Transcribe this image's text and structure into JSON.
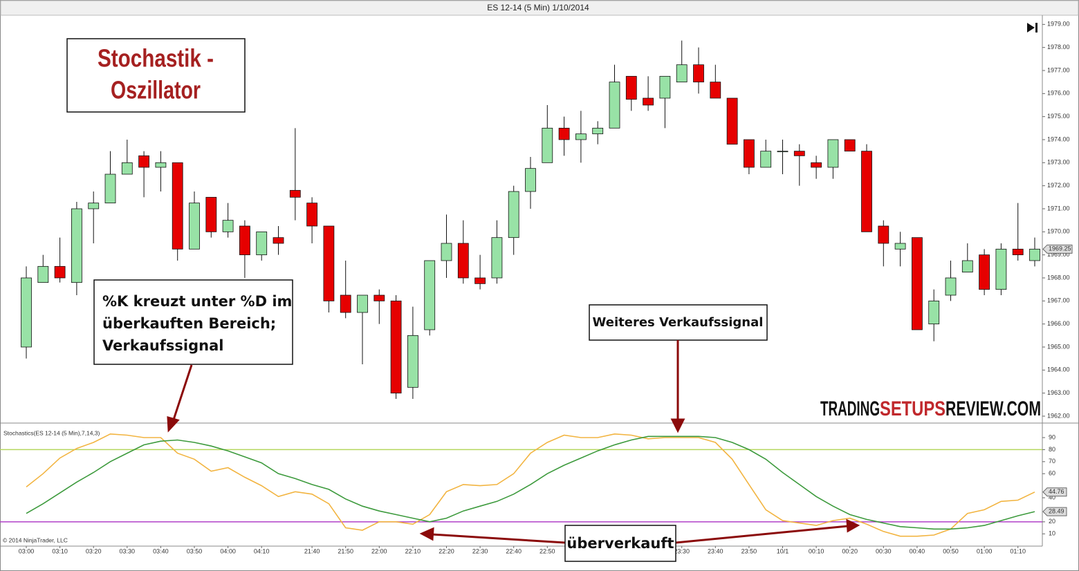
{
  "title": "ES 12-14 (5 Min)  1/10/2014",
  "chart_data": [
    {
      "type": "candlestick",
      "categories": [
        "03:00",
        null,
        "03:10",
        null,
        "03:20",
        null,
        "03:30",
        null,
        "03:40",
        null,
        "03:50",
        null,
        "04:00",
        null,
        "04:10",
        null,
        null,
        "21:40",
        null,
        "21:50",
        null,
        "22:00",
        null,
        "22:10",
        null,
        "22:20",
        null,
        "22:30",
        null,
        "22:40",
        null,
        "22:50",
        null,
        null,
        null,
        null,
        null,
        null,
        null,
        "23:30",
        null,
        "23:40",
        null,
        "23:50",
        null,
        "10/1",
        null,
        "00:10",
        null,
        "00:20",
        null,
        "00:30",
        null,
        "00:40",
        null,
        "00:50",
        null,
        "01:00",
        null,
        "01:10",
        null
      ],
      "open": [
        1965.0,
        1967.8,
        1968.5,
        1967.8,
        1971.0,
        1971.25,
        1972.5,
        1973.3,
        1972.8,
        1973.0,
        1969.25,
        1971.5,
        1970.0,
        1970.25,
        1969.0,
        1969.75,
        1971.8,
        1971.25,
        1970.25,
        1967.25,
        1966.5,
        1967.25,
        1967.0,
        1963.25,
        1965.75,
        1968.75,
        1969.5,
        1968.0,
        1968.0,
        1969.75,
        1971.75,
        1973.0,
        1974.5,
        1974.0,
        1974.25,
        1974.5,
        1976.75,
        1975.8,
        1975.8,
        1976.5,
        1977.25,
        1976.5,
        1975.8,
        1974.0,
        1972.8,
        1973.5,
        1973.5,
        1973.0,
        1972.8,
        1974.0,
        1973.5,
        1970.25,
        1969.25,
        1969.75,
        1966.0,
        1967.25,
        1968.25,
        1969.0,
        1967.5,
        1969.25,
        1968.75
      ],
      "high": [
        1968.5,
        1969.0,
        1969.75,
        1971.3,
        1971.75,
        1973.5,
        1974.0,
        1973.5,
        1973.5,
        1973.0,
        1971.75,
        1971.5,
        1971.25,
        1970.5,
        1970.0,
        1970.25,
        1974.5,
        1971.5,
        1970.25,
        1968.75,
        1967.25,
        1967.5,
        1967.25,
        1966.75,
        1968.75,
        1970.75,
        1970.5,
        1969.0,
        1970.5,
        1972.0,
        1973.25,
        1975.5,
        1975.0,
        1975.25,
        1974.8,
        1977.25,
        1976.75,
        1976.75,
        1976.75,
        1978.3,
        1978.0,
        1977.25,
        1975.8,
        1974.0,
        1974.0,
        1974.0,
        1973.8,
        1973.3,
        1974.0,
        1974.0,
        1973.8,
        1970.5,
        1970.0,
        1969.75,
        1967.5,
        1968.75,
        1969.5,
        1969.25,
        1969.5,
        1971.25,
        1969.75
      ],
      "low": [
        1964.5,
        1967.8,
        1967.8,
        1967.25,
        1969.5,
        1971.25,
        1972.5,
        1971.5,
        1971.75,
        1968.75,
        1969.25,
        1969.75,
        1969.75,
        1968.0,
        1968.75,
        1969.0,
        1970.5,
        1969.5,
        1966.5,
        1966.25,
        1964.25,
        1966.0,
        1962.75,
        1962.75,
        1965.5,
        1968.0,
        1967.75,
        1967.5,
        1967.75,
        1969.0,
        1971.0,
        1973.0,
        1973.3,
        1973.0,
        1973.8,
        1974.5,
        1975.25,
        1975.25,
        1974.5,
        1976.5,
        1976.0,
        1975.8,
        1973.8,
        1972.5,
        1972.8,
        1972.5,
        1972.0,
        1972.3,
        1972.3,
        1973.5,
        1970.0,
        1968.5,
        1968.5,
        1965.75,
        1965.25,
        1967.0,
        1968.25,
        1967.25,
        1967.25,
        1968.75,
        1968.5
      ],
      "close": [
        1968.0,
        1968.5,
        1968.0,
        1971.0,
        1971.25,
        1972.5,
        1973.0,
        1972.8,
        1973.0,
        1969.25,
        1971.25,
        1970.0,
        1970.5,
        1969.0,
        1970.0,
        1969.5,
        1971.5,
        1970.25,
        1967.0,
        1966.5,
        1967.25,
        1967.0,
        1963.0,
        1965.5,
        1968.75,
        1969.5,
        1968.0,
        1967.75,
        1969.75,
        1971.75,
        1972.75,
        1974.5,
        1974.0,
        1974.25,
        1974.5,
        1976.5,
        1975.75,
        1975.5,
        1976.75,
        1977.25,
        1976.5,
        1975.8,
        1973.8,
        1972.8,
        1973.5,
        1973.5,
        1973.3,
        1972.8,
        1974.0,
        1973.5,
        1970.0,
        1969.5,
        1969.5,
        1965.75,
        1967.0,
        1968.0,
        1968.75,
        1967.5,
        1969.25,
        1969.0,
        1969.25
      ],
      "up_color": "#98e2a6",
      "down_color": "#e60000",
      "ylim": [
        1961.7,
        1979.4
      ],
      "yticks": [
        {
          "value": 1962,
          "label": "1962.00"
        },
        {
          "value": 1963,
          "label": "1963.00"
        },
        {
          "value": 1964,
          "label": "1964.00"
        },
        {
          "value": 1965,
          "label": "1965.00"
        },
        {
          "value": 1966,
          "label": "1966.00"
        },
        {
          "value": 1967,
          "label": "1967.00"
        },
        {
          "value": 1968,
          "label": "1968.00"
        },
        {
          "value": 1969,
          "label": "1969.00"
        },
        {
          "value": 1970,
          "label": "1970.00"
        },
        {
          "value": 1971,
          "label": "1971.00"
        },
        {
          "value": 1972,
          "label": "1972.00"
        },
        {
          "value": 1973,
          "label": "1973.00"
        },
        {
          "value": 1974,
          "label": "1974.00"
        },
        {
          "value": 1975,
          "label": "1975.00"
        },
        {
          "value": 1976,
          "label": "1976.00"
        },
        {
          "value": 1977,
          "label": "1977.00"
        },
        {
          "value": 1978,
          "label": "1978.00"
        },
        {
          "value": 1979,
          "label": "1979.00"
        }
      ],
      "watermark": [
        "TRADING",
        "SETUPS",
        "REVIEW.COM"
      ]
    },
    {
      "type": "line",
      "title": "Stochastics(ES 12-14 (5 Min),7,14,3)",
      "series": [
        {
          "color": "#f2b440",
          "values": [
            49,
            60,
            73,
            81,
            86,
            93,
            92,
            90,
            90,
            77,
            72,
            62,
            65,
            57,
            50,
            41,
            45,
            43,
            35,
            15,
            13,
            20,
            20,
            18,
            26,
            45,
            51,
            50,
            51,
            60,
            77,
            86,
            92,
            90,
            90,
            93,
            92,
            89,
            90,
            90,
            90,
            86,
            72,
            51,
            30,
            21,
            19,
            17,
            21,
            23,
            18,
            12,
            8,
            8,
            9,
            14,
            27,
            30,
            37,
            38,
            44.76
          ]
        },
        {
          "color": "#3c9a3c",
          "values": [
            27,
            35,
            44,
            53,
            61,
            70,
            77,
            84,
            87,
            88,
            86,
            83,
            79,
            74,
            69,
            60,
            56,
            51,
            47,
            39,
            33,
            29,
            26,
            23,
            20,
            23,
            29,
            33,
            37,
            43,
            51,
            60,
            67,
            73,
            79,
            84,
            88,
            91,
            91,
            91,
            91,
            90,
            86,
            80,
            72,
            61,
            51,
            41,
            33,
            26,
            22,
            19,
            16,
            15,
            14,
            14,
            15,
            17,
            21,
            25,
            28.49
          ]
        }
      ],
      "hlines": [
        {
          "value": 80,
          "color": "#b5d65e"
        },
        {
          "value": 20,
          "color": "#b040c8"
        }
      ],
      "ylim": [
        -0.2,
        101.5
      ],
      "yticks": [
        10,
        20,
        40,
        60,
        70,
        80,
        90
      ],
      "copyright": "© 2014 NinjaTrader, LLC"
    }
  ],
  "annotations": {
    "heading": [
      "Stochastik -",
      "Oszillator"
    ],
    "crossover": [
      "%K kreuzt unter %D im",
      "überkauften Bereich;",
      "Verkaufssignal"
    ],
    "sell_signal": "Weiteres Verkaufssignal",
    "oversold": "überverkauft"
  }
}
